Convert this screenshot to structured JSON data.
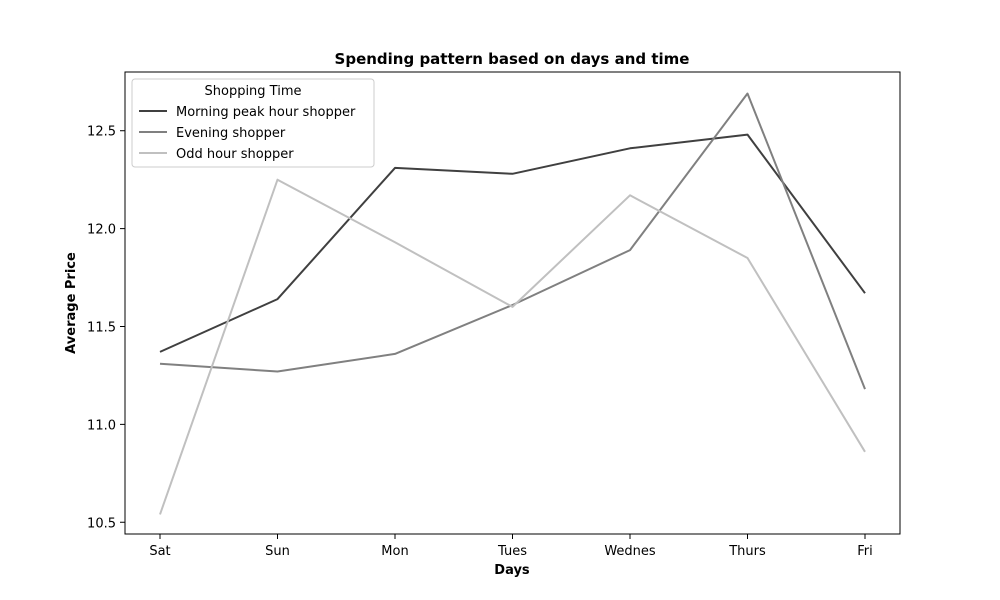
{
  "chart_data": {
    "type": "line",
    "title": "Spending pattern based on days and time",
    "xlabel": "Days",
    "ylabel": "Average Price",
    "categories": [
      "Sat",
      "Sun",
      "Mon",
      "Tues",
      "Wednes",
      "Thurs",
      "Fri"
    ],
    "ylim": [
      10.44,
      12.8
    ],
    "yticks": [
      10.5,
      11.0,
      11.5,
      12.0,
      12.5
    ],
    "ytick_labels": [
      "10.5",
      "11.0",
      "11.5",
      "12.0",
      "12.5"
    ],
    "grid": false,
    "legend": {
      "title": "Shopping Time",
      "position": "top-left"
    },
    "series": [
      {
        "name": "Morning peak hour shopper",
        "color": "#404040",
        "values": [
          11.37,
          11.64,
          12.31,
          12.28,
          12.41,
          12.48,
          11.67
        ]
      },
      {
        "name": "Evening shopper",
        "color": "#808080",
        "values": [
          11.31,
          11.27,
          11.36,
          11.61,
          11.89,
          12.69,
          11.18
        ]
      },
      {
        "name": "Odd hour shopper",
        "color": "#c0c0c0",
        "values": [
          10.54,
          12.25,
          11.93,
          11.6,
          12.17,
          11.85,
          10.86
        ]
      }
    ]
  }
}
